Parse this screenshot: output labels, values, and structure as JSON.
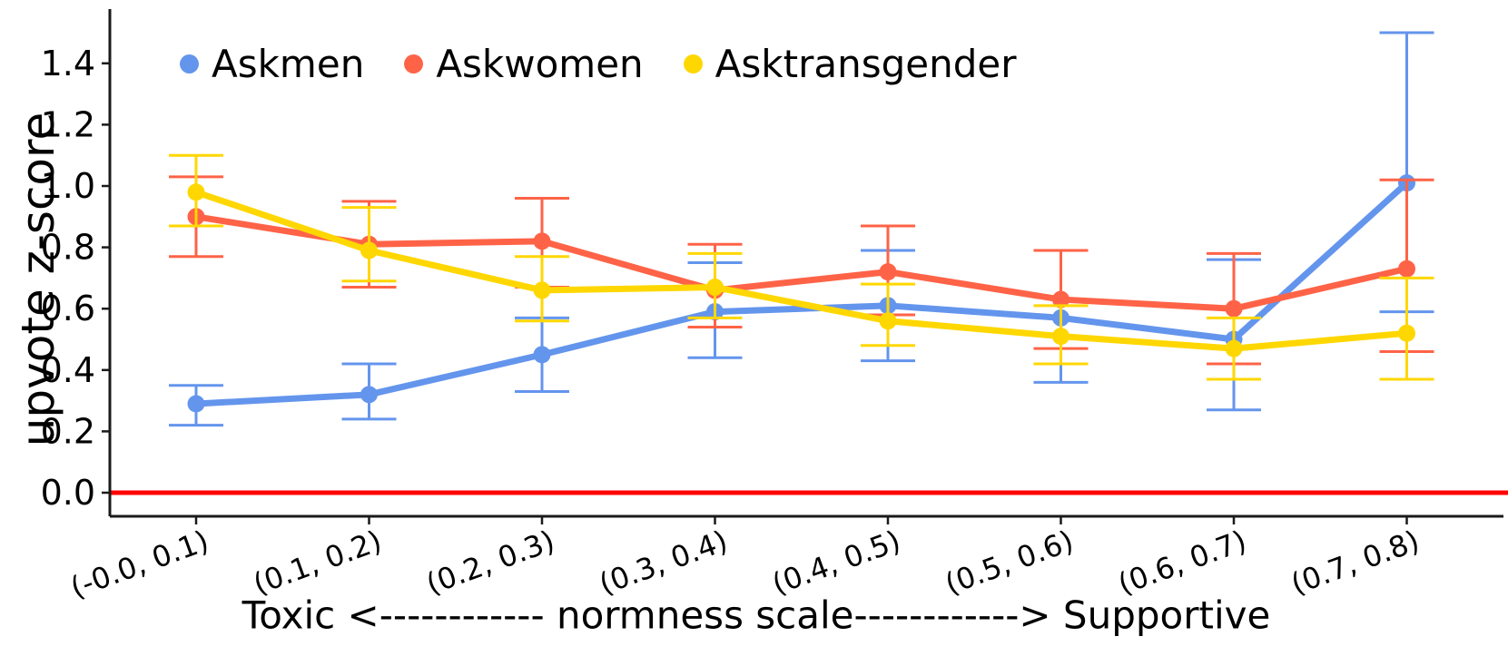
{
  "figure": {
    "background": "#ffffff",
    "axis_color": "#1a1a1a"
  },
  "chart_data": {
    "type": "line",
    "title": "",
    "xlabel": "Toxic <------------ normness scale------------> Supportive",
    "ylabel": "upvote z-score",
    "categories": [
      "(-0.0, 0.1)",
      "(0.1, 0.2)",
      "(0.2, 0.3)",
      "(0.3, 0.4)",
      "(0.4, 0.5)",
      "(0.5, 0.6)",
      "(0.6, 0.7)",
      "(0.7, 0.8)"
    ],
    "y_ticks": [
      "0.0",
      "0.2",
      "0.4",
      "0.6",
      "0.8",
      "1.0",
      "1.2",
      "1.4"
    ],
    "ylim": [
      -0.08,
      1.56
    ],
    "grid": false,
    "legend_position": "upper-left-horizontal",
    "zero_line": {
      "value": 0.0,
      "color": "#ff0000"
    },
    "error_bars": true,
    "series": [
      {
        "name": "Askmen",
        "color": "#6495ED",
        "values": [
          0.29,
          0.32,
          0.45,
          0.59,
          0.61,
          0.57,
          0.5,
          1.01
        ],
        "err_upper": [
          0.35,
          0.42,
          0.57,
          0.75,
          0.79,
          0.79,
          0.76,
          1.5
        ],
        "err_lower": [
          0.22,
          0.24,
          0.33,
          0.44,
          0.43,
          0.36,
          0.27,
          0.59
        ]
      },
      {
        "name": "Askwomen",
        "color": "#FF6347",
        "values": [
          0.9,
          0.81,
          0.82,
          0.66,
          0.72,
          0.63,
          0.6,
          0.73
        ],
        "err_upper": [
          1.03,
          0.95,
          0.96,
          0.81,
          0.87,
          0.79,
          0.78,
          1.02
        ],
        "err_lower": [
          0.77,
          0.67,
          0.67,
          0.54,
          0.58,
          0.47,
          0.42,
          0.46
        ]
      },
      {
        "name": "Asktransgender",
        "color": "#FFD700",
        "values": [
          0.98,
          0.79,
          0.66,
          0.67,
          0.56,
          0.51,
          0.47,
          0.52
        ],
        "err_upper": [
          1.1,
          0.93,
          0.77,
          0.78,
          0.68,
          0.61,
          0.57,
          0.7
        ],
        "err_lower": [
          0.87,
          0.69,
          0.56,
          0.57,
          0.48,
          0.42,
          0.37,
          0.37
        ]
      }
    ]
  }
}
